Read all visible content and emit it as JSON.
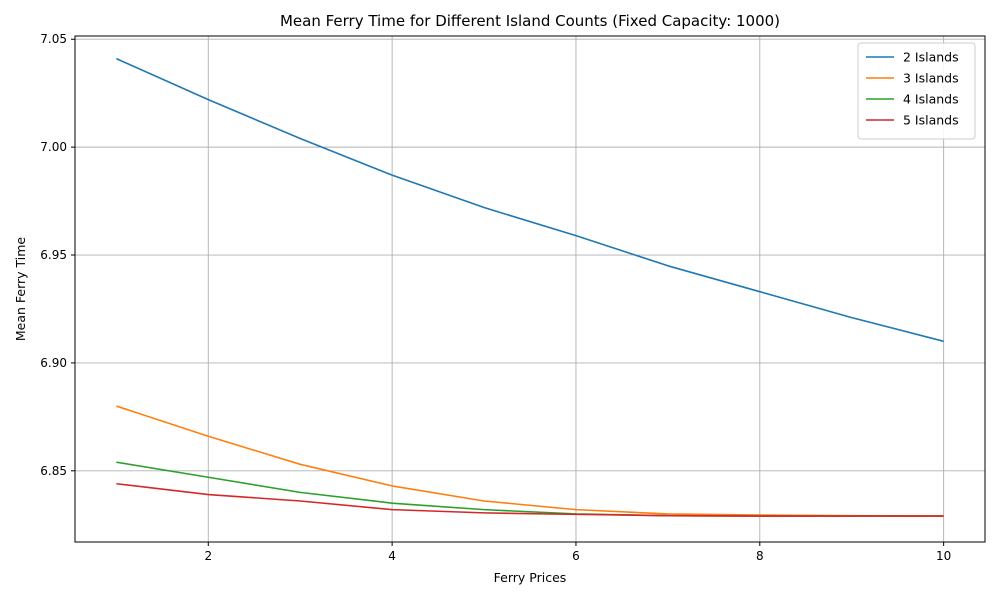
{
  "chart_data": {
    "type": "line",
    "title": "Mean Ferry Time for Different Island Counts (Fixed Capacity: 1000)",
    "xlabel": "Ferry Prices",
    "ylabel": "Mean Ferry Time",
    "x": [
      1,
      2,
      3,
      4,
      5,
      6,
      7,
      8,
      9,
      10
    ],
    "xlim": [
      0.55,
      10.45
    ],
    "ylim": [
      6.817,
      7.0515
    ],
    "xticks": [
      2,
      4,
      6,
      8,
      10
    ],
    "yticks": [
      6.85,
      6.9,
      6.95,
      7.0,
      7.05
    ],
    "xtick_labels": [
      "2",
      "4",
      "6",
      "8",
      "10"
    ],
    "ytick_labels": [
      "6.85",
      "6.90",
      "6.95",
      "7.00",
      "7.05"
    ],
    "grid": true,
    "legend_position": "top-right",
    "series": [
      {
        "name": "2 Islands",
        "color": "#1f77b4",
        "values": [
          7.041,
          7.022,
          7.004,
          6.987,
          6.972,
          6.959,
          6.945,
          6.933,
          6.921,
          6.91
        ]
      },
      {
        "name": "3 Islands",
        "color": "#ff7f0e",
        "values": [
          6.88,
          6.866,
          6.853,
          6.843,
          6.836,
          6.832,
          6.83,
          6.8295,
          6.8292,
          6.829
        ]
      },
      {
        "name": "4 Islands",
        "color": "#2ca02c",
        "values": [
          6.854,
          6.847,
          6.84,
          6.835,
          6.832,
          6.83,
          6.8292,
          6.829,
          6.829,
          6.829
        ]
      },
      {
        "name": "5 Islands",
        "color": "#d62728",
        "values": [
          6.844,
          6.839,
          6.836,
          6.832,
          6.8305,
          6.8298,
          6.8292,
          6.829,
          6.829,
          6.829
        ]
      }
    ]
  }
}
